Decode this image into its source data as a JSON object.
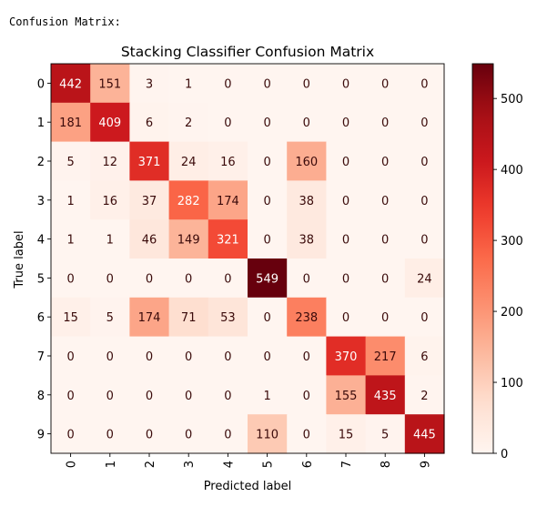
{
  "console": {
    "label": "Confusion Matrix:"
  },
  "chart_data": {
    "type": "heatmap",
    "title": "Stacking Classifier Confusion Matrix",
    "xlabel": "Predicted label",
    "ylabel": "True label",
    "x_ticks": [
      "0",
      "1",
      "2",
      "3",
      "4",
      "5",
      "6",
      "7",
      "8",
      "9"
    ],
    "y_ticks": [
      "0",
      "1",
      "2",
      "3",
      "4",
      "5",
      "6",
      "7",
      "8",
      "9"
    ],
    "matrix": [
      [
        442,
        151,
        3,
        1,
        0,
        0,
        0,
        0,
        0,
        0
      ],
      [
        181,
        409,
        6,
        2,
        0,
        0,
        0,
        0,
        0,
        0
      ],
      [
        5,
        12,
        371,
        24,
        16,
        0,
        160,
        0,
        0,
        0
      ],
      [
        1,
        16,
        37,
        282,
        174,
        0,
        38,
        0,
        0,
        0
      ],
      [
        1,
        1,
        46,
        149,
        321,
        0,
        38,
        0,
        0,
        0
      ],
      [
        0,
        0,
        0,
        0,
        0,
        549,
        0,
        0,
        0,
        24
      ],
      [
        15,
        5,
        174,
        71,
        53,
        0,
        238,
        0,
        0,
        0
      ],
      [
        0,
        0,
        0,
        0,
        0,
        0,
        0,
        370,
        217,
        6
      ],
      [
        0,
        0,
        0,
        0,
        0,
        1,
        0,
        155,
        435,
        2
      ],
      [
        0,
        0,
        0,
        0,
        0,
        110,
        0,
        15,
        5,
        445
      ]
    ],
    "colormap": "Reds",
    "vmin": 0,
    "vmax": 549,
    "colorbar_ticks": [
      0,
      100,
      200,
      300,
      400,
      500
    ],
    "grid": false
  }
}
